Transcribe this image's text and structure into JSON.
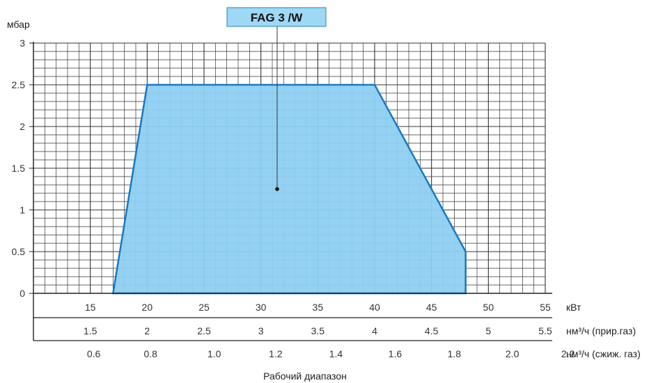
{
  "chart_data": {
    "type": "area",
    "title": "FAG 3 /W",
    "ylabel": "мбар",
    "ylim": [
      0,
      3
    ],
    "y_ticks": [
      "0",
      "0.5",
      "1",
      "1.5",
      "2",
      "2.5",
      "3"
    ],
    "xlim": [
      10,
      55
    ],
    "grid": true,
    "x_axes": [
      {
        "unit": "кВт",
        "ticks": [
          {
            "v": 15,
            "label": "15"
          },
          {
            "v": 20,
            "label": "20"
          },
          {
            "v": 25,
            "label": "25"
          },
          {
            "v": 30,
            "label": "30"
          },
          {
            "v": 35,
            "label": "35"
          },
          {
            "v": 40,
            "label": "40"
          },
          {
            "v": 45,
            "label": "45"
          },
          {
            "v": 50,
            "label": "50"
          },
          {
            "v": 55,
            "label": "55"
          }
        ]
      },
      {
        "unit": "нм³/ч (прир.газ)",
        "ticks": [
          {
            "v": 15,
            "label": "1.5"
          },
          {
            "v": 20,
            "label": "2"
          },
          {
            "v": 25,
            "label": "2.5"
          },
          {
            "v": 30,
            "label": "3"
          },
          {
            "v": 35,
            "label": "3.5"
          },
          {
            "v": 40,
            "label": "4"
          },
          {
            "v": 45,
            "label": "4.5"
          },
          {
            "v": 50,
            "label": "5"
          },
          {
            "v": 55,
            "label": "5.5"
          }
        ]
      },
      {
        "unit": "нм³/ч (сжиж. газ)",
        "ticks": [
          {
            "v": 15.3,
            "label": "0.6"
          },
          {
            "v": 20.3,
            "label": "0.8"
          },
          {
            "v": 25.9,
            "label": "1.0"
          },
          {
            "v": 31.3,
            "label": "1.2"
          },
          {
            "v": 36.6,
            "label": "1.4"
          },
          {
            "v": 41.8,
            "label": "1.6"
          },
          {
            "v": 47.0,
            "label": "1.8"
          },
          {
            "v": 52.1,
            "label": "2.0"
          },
          {
            "v": 57.0,
            "label": "2.2"
          }
        ]
      }
    ],
    "region": {
      "x": [
        17,
        20,
        40,
        48,
        48
      ],
      "y": [
        0,
        2.5,
        2.5,
        0.5,
        0
      ]
    },
    "colors": {
      "fill": "#8ecff1",
      "stroke": "#1a78c2",
      "grid": "#333333"
    },
    "caption": "Рабочий диапазон"
  }
}
